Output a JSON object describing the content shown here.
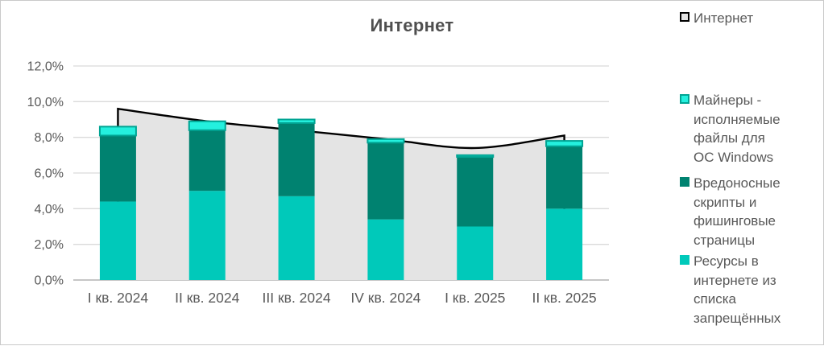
{
  "title": "Интернет",
  "legend": {
    "position": "right",
    "items": [
      {
        "label": "Интернет",
        "fill": "#e4e4e4",
        "border": "#000000"
      },
      {
        "label": "Майнеры - исполняемые файлы для ОС Windows",
        "fill": "#24f0de",
        "border": "#00a493"
      },
      {
        "label": "Вредоносные скрипты и фишинговые страницы",
        "fill": "#008270",
        "border": ""
      },
      {
        "label": "Ресурсы в интернете из списка запрещённых",
        "fill": "#00c9ba",
        "border": ""
      }
    ]
  },
  "chart_data": {
    "type": "combo: stacked bar + smoothed area line",
    "title": "Интернет",
    "categories": [
      "I кв. 2024",
      "II кв. 2024",
      "III кв. 2024",
      "IV кв. 2024",
      "I кв. 2025",
      "II кв. 2025"
    ],
    "bar_series": [
      {
        "name": "Ресурсы в интернете из списка запрещённых",
        "color": "#00c9ba",
        "border": "",
        "values": [
          4.4,
          5.0,
          4.7,
          3.4,
          3.0,
          4.0
        ]
      },
      {
        "name": "Вредоносные скрипты и фишинговые страницы",
        "color": "#008270",
        "border": "",
        "values": [
          3.7,
          3.4,
          4.1,
          4.3,
          3.9,
          3.5
        ]
      },
      {
        "name": "Майнеры - исполняемые файлы для ОС Windows",
        "color": "#24f0de",
        "border": "#00a493",
        "values": [
          0.5,
          0.5,
          0.2,
          0.2,
          0.1,
          0.3
        ]
      }
    ],
    "bar_totals": [
      8.6,
      8.9,
      9.0,
      7.9,
      7.0,
      7.8
    ],
    "line_series": {
      "name": "Интернет",
      "color": "#000000",
      "area_fill": "#e4e4e4",
      "values": [
        9.6,
        8.9,
        8.4,
        7.9,
        7.4,
        8.1
      ]
    },
    "y_axis": {
      "min": 0,
      "max": 12,
      "step": 2,
      "tick_labels": [
        "0,0%",
        "2,0%",
        "4,0%",
        "6,0%",
        "8,0%",
        "10,0%",
        "12,0%"
      ]
    },
    "grid": true,
    "legend_position": "right",
    "colors": {
      "gridline": "#dadada",
      "axis_line": "#c6c6c6",
      "text": "#595959",
      "title_text": "#4f4f4f"
    }
  }
}
